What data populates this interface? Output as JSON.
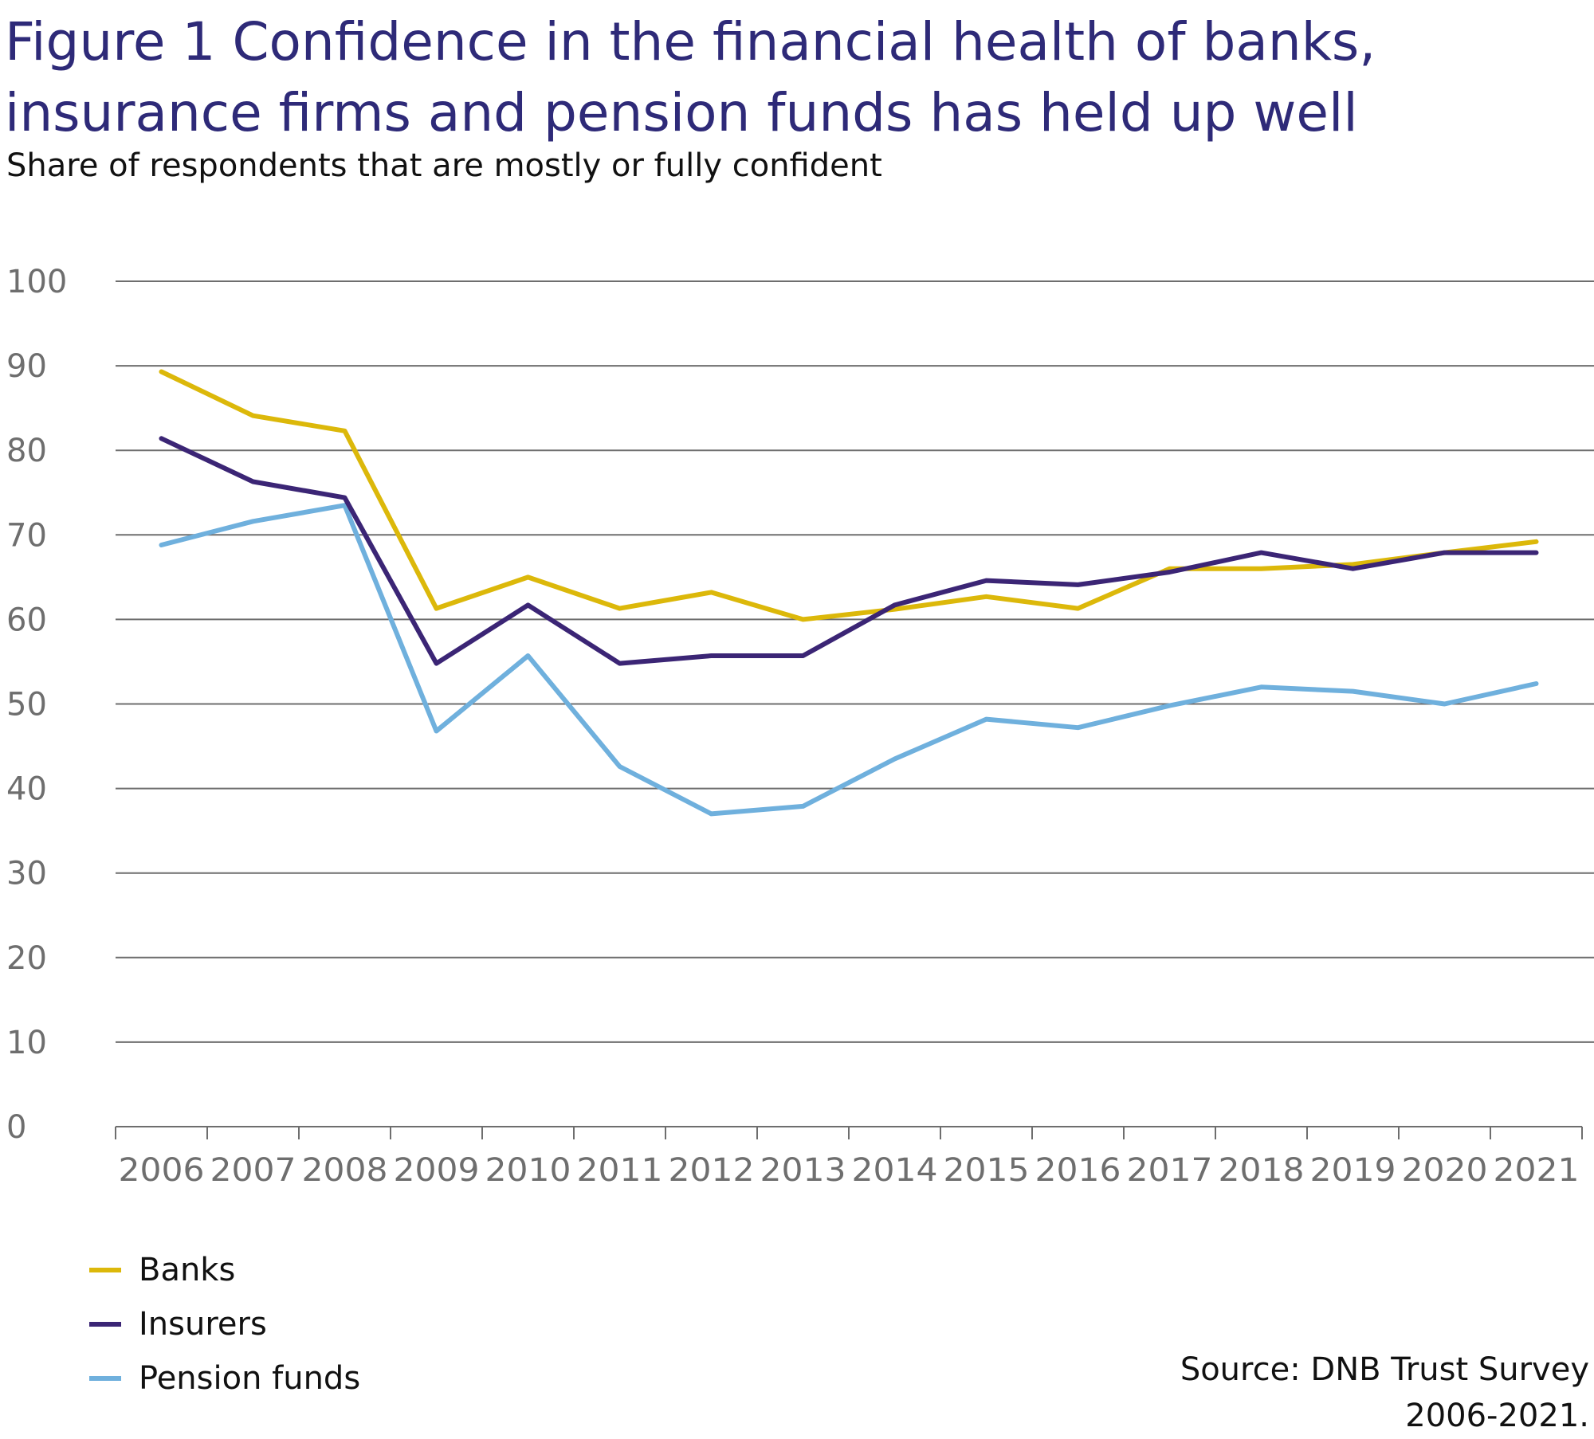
{
  "title_lines": [
    "Figure 1  Confidence in the financial health of banks,",
    "insurance firms and pension funds has held up well"
  ],
  "subtitle": "Share of respondents that are mostly or fully confident",
  "source": {
    "line1": "Source: DNB Trust Survey",
    "line2": "2006-2021."
  },
  "colors": {
    "banks": "#dcb80a",
    "insurers": "#3b2575",
    "pension_funds": "#6fb0dd",
    "grid": "#6e6e6e",
    "tick_label": "#6e6e6e"
  },
  "chart_data": {
    "type": "line",
    "x": [
      "2006",
      "2007",
      "2008",
      "2009",
      "2010",
      "2011",
      "2012",
      "2013",
      "2014",
      "2015",
      "2016",
      "2017",
      "2018",
      "2019",
      "2020",
      "2021"
    ],
    "y_ticks": [
      "0",
      "10",
      "20",
      "30",
      "40",
      "50",
      "60",
      "70",
      "80",
      "90",
      "100"
    ],
    "ylim": [
      0,
      100
    ],
    "grid": true,
    "legend_position": "bottom-left",
    "series": [
      {
        "name": "Banks",
        "color_key": "banks",
        "values": [
          89.3,
          84.1,
          82.3,
          61.3,
          65.0,
          61.3,
          63.2,
          60.0,
          61.2,
          62.7,
          61.3,
          66.0,
          66.0,
          66.5,
          67.9,
          69.2
        ]
      },
      {
        "name": "Insurers",
        "color_key": "insurers",
        "values": [
          81.4,
          76.3,
          74.4,
          54.8,
          61.7,
          54.8,
          55.7,
          55.7,
          61.7,
          64.6,
          64.1,
          65.6,
          67.9,
          66.0,
          67.9,
          67.9
        ]
      },
      {
        "name": "Pension funds",
        "color_key": "pension_funds",
        "values": [
          68.8,
          71.6,
          73.5,
          46.8,
          55.7,
          42.6,
          37.0,
          37.9,
          43.5,
          48.2,
          47.2,
          49.8,
          52.0,
          51.5,
          50.0,
          52.4
        ]
      }
    ]
  }
}
